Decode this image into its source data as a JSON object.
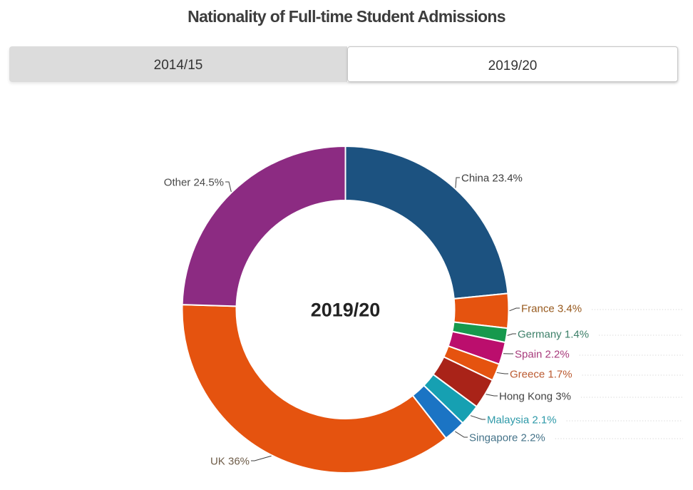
{
  "page": {
    "title": "Nationality of Full-time Student Admissions",
    "background": "#ffffff"
  },
  "tabs": {
    "items": [
      {
        "label": "2014/15",
        "active": false
      },
      {
        "label": "2019/20",
        "active": true
      }
    ]
  },
  "chart_data": {
    "type": "pie",
    "subtype": "donut",
    "title": "Nationality of Full-time Student Admissions",
    "center_label": "2019/20",
    "unit": "%",
    "start_angle_deg": 0,
    "direction": "clockwise",
    "inner_radius_ratio": 0.67,
    "legend_position": "none",
    "slices": [
      {
        "name": "China",
        "value": 23.4,
        "display_label": "China 23.4%",
        "color": "#1c5280",
        "label_color": "#3e3e3e"
      },
      {
        "name": "France",
        "value": 3.4,
        "display_label": "France 3.4%",
        "color": "#e5530f",
        "label_color": "#97591d"
      },
      {
        "name": "Germany",
        "value": 1.4,
        "display_label": "Germany 1.4%",
        "color": "#17994d",
        "label_color": "#3c7f68"
      },
      {
        "name": "Spain",
        "value": 2.2,
        "display_label": "Spain 2.2%",
        "color": "#bb0e6d",
        "label_color": "#a83b7c"
      },
      {
        "name": "Greece",
        "value": 1.7,
        "display_label": "Greece 1.7%",
        "color": "#e5530f",
        "label_color": "#bb5a30"
      },
      {
        "name": "Hong Kong",
        "value": 3,
        "display_label": "Hong Kong 3%",
        "color": "#a92318",
        "label_color": "#434343"
      },
      {
        "name": "Malaysia",
        "value": 2.1,
        "display_label": "Malaysia 2.1%",
        "color": "#16a0b2",
        "label_color": "#2d99a8"
      },
      {
        "name": "Singapore",
        "value": 2.2,
        "display_label": "Singapore 2.2%",
        "color": "#1b74c4",
        "label_color": "#457389"
      },
      {
        "name": "UK",
        "value": 36,
        "display_label": "UK 36%",
        "color": "#e5530f",
        "label_color": "#6e5c48"
      },
      {
        "name": "Other",
        "value": 24.5,
        "display_label": "Other 24.5%",
        "color": "#8c2b82",
        "label_color": "#4a4a4a"
      }
    ],
    "colors": {
      "slice_border": "#ffffff",
      "connector": "#3f3f3f",
      "leader_dots": "#d4d4d4",
      "center_label_color": "#222222"
    }
  }
}
